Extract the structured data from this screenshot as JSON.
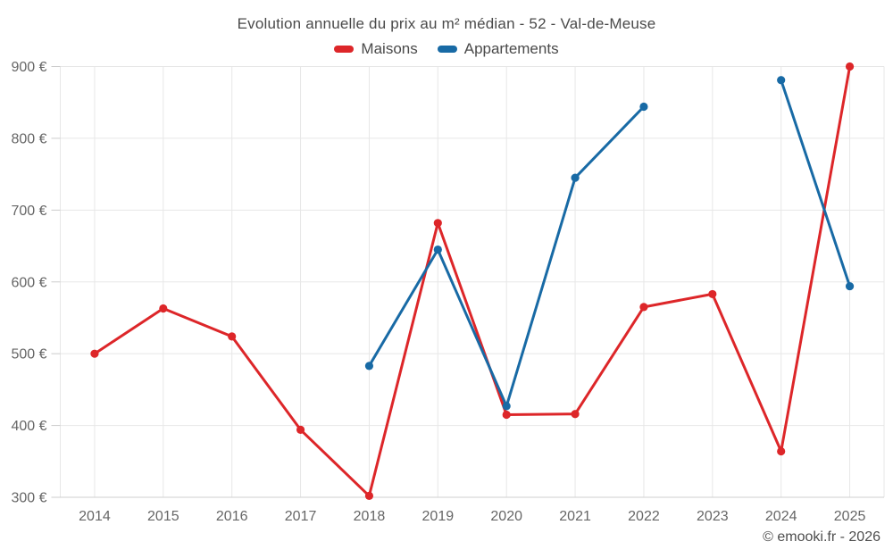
{
  "chart_data": {
    "type": "line",
    "title": "Evolution annuelle du prix au m² médian - 52 - Val-de-Meuse",
    "categories": [
      "2014",
      "2015",
      "2016",
      "2017",
      "2018",
      "2019",
      "2020",
      "2021",
      "2022",
      "2023",
      "2024",
      "2025"
    ],
    "series": [
      {
        "name": "Maisons",
        "color": "#dd2629",
        "values": [
          500,
          563,
          524,
          394,
          302,
          682,
          415,
          416,
          565,
          583,
          364,
          900
        ]
      },
      {
        "name": "Appartements",
        "color": "#186aa5",
        "values": [
          null,
          null,
          null,
          null,
          483,
          645,
          427,
          745,
          844,
          null,
          881,
          594
        ]
      }
    ],
    "ylim": [
      300,
      900
    ],
    "ytick_values": [
      300,
      400,
      500,
      600,
      700,
      800,
      900
    ],
    "ytick_labels": [
      "300 €",
      "400 €",
      "500 €",
      "600 €",
      "700 €",
      "800 €",
      "900 €"
    ],
    "grid": true,
    "legend_position": "top",
    "watermark": "© emooki.fr - 2026",
    "colors": {
      "grid": "#e7e7e7",
      "axis_line": "#cfcfcf",
      "tick": "#cccccc",
      "axis_text": "#666666",
      "title_text": "#4a4a4a",
      "watermark_text": "#4d4d4d"
    }
  }
}
